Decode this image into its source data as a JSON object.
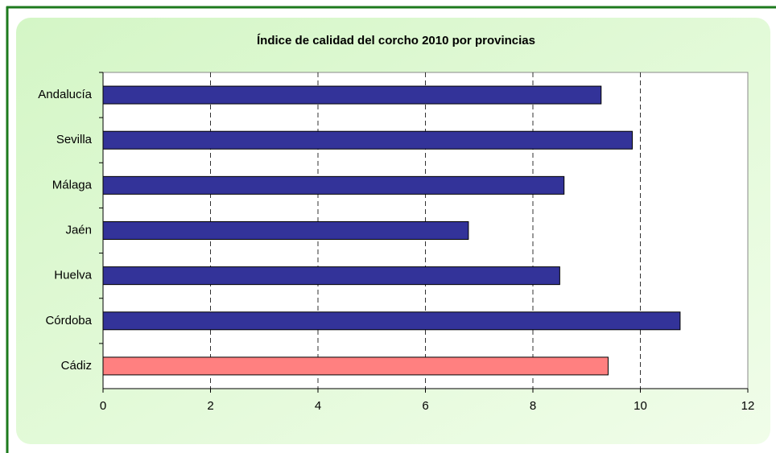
{
  "chart_data": {
    "type": "hbar",
    "title": "Índice de calidad del corcho 2010 por provincias",
    "categories": [
      "Andalucía",
      "Sevilla",
      "Málaga",
      "Jaén",
      "Huelva",
      "Córdoba",
      "Cádiz"
    ],
    "values": [
      9.27,
      9.85,
      8.58,
      6.8,
      8.5,
      10.74,
      9.4
    ],
    "colors": [
      "#333399",
      "#333399",
      "#333399",
      "#333399",
      "#333399",
      "#333399",
      "#ff8080"
    ],
    "xlim": [
      0,
      12
    ],
    "xticks": [
      0,
      2,
      4,
      6,
      8,
      10,
      12
    ],
    "grid": true
  }
}
